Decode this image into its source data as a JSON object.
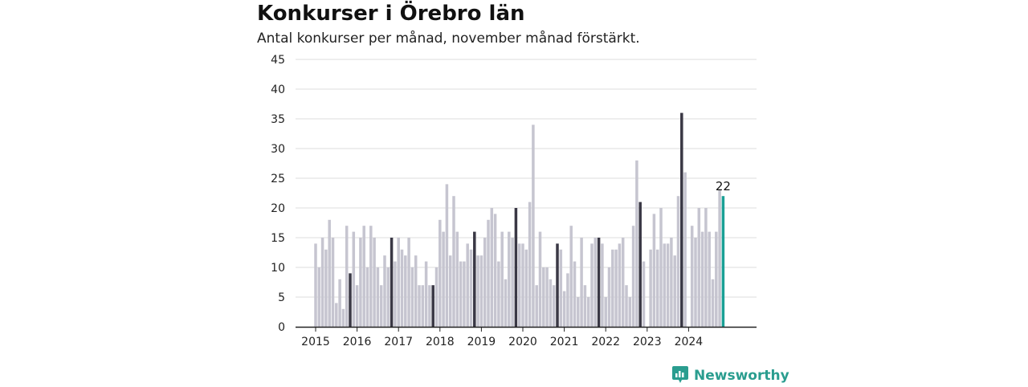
{
  "header": {
    "title": "Konkurser i Örebro län",
    "subtitle": "Antal konkurser per månad, november månad förstärkt."
  },
  "brand": {
    "name": "Newsworthy",
    "icon": "bar-chart-speech-bubble-icon"
  },
  "colors": {
    "normal": "#c6c5d0",
    "november": "#3a3845",
    "latest": "#1aa096",
    "grid": "#dddddd",
    "axis": "#222222",
    "brand": "#2a9d8f"
  },
  "chart_data": {
    "type": "bar",
    "title": "Konkurser i Örebro län",
    "subtitle": "Antal konkurser per månad, november månad förstärkt.",
    "xlabel": "",
    "ylabel": "",
    "ylim": [
      0,
      45
    ],
    "yticks": [
      "0",
      "5",
      "10",
      "15",
      "20",
      "25",
      "30",
      "35",
      "40",
      "45"
    ],
    "xticks": [
      "2015",
      "2016",
      "2017",
      "2018",
      "2019",
      "2020",
      "2021",
      "2022",
      "2023",
      "2024"
    ],
    "grid": true,
    "highlight": "november",
    "highlight_label": "22",
    "series": [
      {
        "year": 2015,
        "values": [
          14,
          10,
          15,
          13,
          18,
          15,
          4,
          8,
          3,
          17,
          9,
          16
        ]
      },
      {
        "year": 2016,
        "values": [
          7,
          15,
          17,
          10,
          17,
          15,
          10,
          7,
          12,
          10,
          15,
          11
        ]
      },
      {
        "year": 2017,
        "values": [
          15,
          13,
          12,
          15,
          10,
          12,
          7,
          7,
          11,
          7,
          7,
          10
        ]
      },
      {
        "year": 2018,
        "values": [
          18,
          16,
          24,
          12,
          22,
          16,
          11,
          11,
          14,
          13,
          16,
          12
        ]
      },
      {
        "year": 2019,
        "values": [
          12,
          15,
          18,
          20,
          19,
          11,
          16,
          8,
          16,
          15,
          20,
          14
        ]
      },
      {
        "year": 2020,
        "values": [
          14,
          13,
          21,
          34,
          7,
          16,
          10,
          10,
          8,
          7,
          14,
          13
        ]
      },
      {
        "year": 2021,
        "values": [
          6,
          9,
          17,
          11,
          5,
          15,
          7,
          5,
          14,
          15,
          15,
          14
        ]
      },
      {
        "year": 2022,
        "values": [
          5,
          10,
          13,
          13,
          14,
          15,
          7,
          5,
          17,
          28,
          21,
          11
        ]
      },
      {
        "year": 2023,
        "values": [
          0,
          13,
          19,
          13,
          20,
          14,
          14,
          15,
          12,
          22,
          36,
          26
        ]
      },
      {
        "year": 2024,
        "values": [
          0,
          17,
          15,
          20,
          16,
          20,
          16,
          8,
          16,
          23,
          22
        ]
      }
    ]
  }
}
